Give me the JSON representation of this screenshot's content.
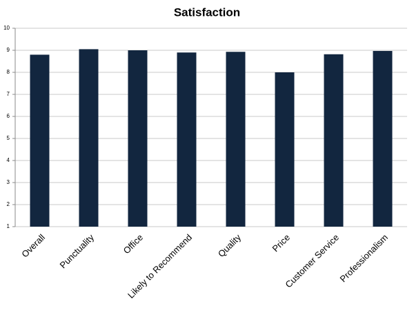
{
  "chart_data": {
    "type": "bar",
    "title": "Satisfaction",
    "categories": [
      "Overall",
      "Punctuality",
      "Office",
      "Likely to Recommend",
      "Quality",
      "Price",
      "Customer Service",
      "Professionalism"
    ],
    "values": [
      8.8,
      9.05,
      9.0,
      8.9,
      8.93,
      8.0,
      8.82,
      8.97
    ],
    "color": "#12263f",
    "ylim": [
      1,
      10
    ],
    "yticks": [
      1,
      2,
      3,
      4,
      5,
      6,
      7,
      8,
      9,
      10
    ],
    "grid": true
  }
}
